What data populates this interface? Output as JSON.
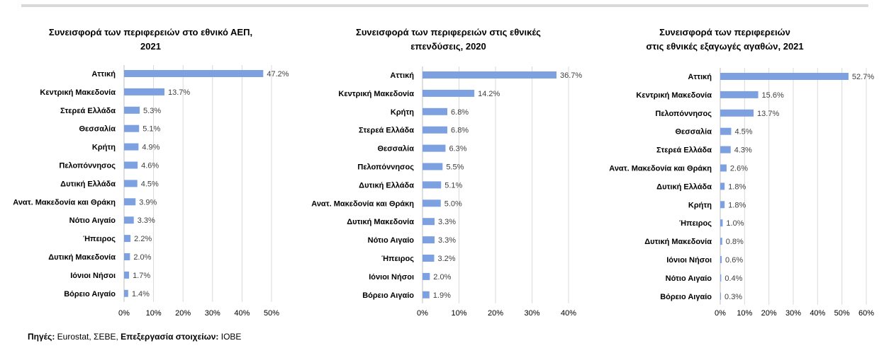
{
  "source": {
    "label1": "Πηγές:",
    "text1": " Eurostat, ΣΕΒΕ, ",
    "label2": "Επεξεργασία στοιχείων:",
    "text2": " ΙΟΒΕ"
  },
  "chart_data": [
    {
      "type": "bar",
      "orientation": "horizontal",
      "title_lines": [
        "Συνεισφορά των περιφερειών στο εθνικό ΑΕΠ,",
        "2021"
      ],
      "categories": [
        "Αττική",
        "Κεντρική Μακεδονία",
        "Στερεά Ελλάδα",
        "Θεσσαλία",
        "Κρήτη",
        "Πελοπόννησος",
        "Δυτική Ελλάδα",
        "Ανατ. Μακεδονία και Θράκη",
        "Νότιο Αιγαίο",
        "Ήπειρος",
        "Δυτική Μακεδονία",
        "Ιόνιοι Νήσοι",
        "Βόρειο Αιγαίο"
      ],
      "values": [
        47.2,
        13.7,
        5.3,
        5.1,
        4.9,
        4.6,
        4.5,
        3.9,
        3.3,
        2.2,
        2.0,
        1.7,
        1.4
      ],
      "value_labels": [
        "47.2%",
        "13.7%",
        "5.3%",
        "5.1%",
        "4.9%",
        "4.6%",
        "4.5%",
        "3.9%",
        "3.3%",
        "2.2%",
        "2.0%",
        "1.7%",
        "1.4%"
      ],
      "xlim": [
        0,
        50
      ],
      "xticks": [
        0,
        10,
        20,
        30,
        40,
        50
      ],
      "xtick_labels": [
        "0%",
        "10%",
        "20%",
        "30%",
        "40%",
        "50%"
      ],
      "grid": true,
      "bar_color": "#7da1e0",
      "grid_color": "#d9d9d9"
    },
    {
      "type": "bar",
      "orientation": "horizontal",
      "title_lines": [
        "Συνεισφορά των περιφερειών στις εθνικές",
        "επενδύσεις, 2020"
      ],
      "categories": [
        "Αττική",
        "Κεντρική Μακεδονία",
        "Κρήτη",
        "Στερεά Ελλάδα",
        "Θεσσαλία",
        "Πελοπόννησος",
        "Δυτική Ελλάδα",
        "Ανατ. Μακεδονία και Θράκη",
        "Δυτική Μακεδονία",
        "Νότιο Αιγαίο",
        "Ήπειρος",
        "Ιόνιοι Νήσοι",
        "Βόρειο Αιγαίο"
      ],
      "values": [
        36.7,
        14.2,
        6.8,
        6.8,
        6.3,
        5.5,
        5.1,
        5.0,
        3.3,
        3.3,
        3.2,
        2.0,
        1.9
      ],
      "value_labels": [
        "36.7%",
        "14.2%",
        "6.8%",
        "6.8%",
        "6.3%",
        "5.5%",
        "5.1%",
        "5.0%",
        "3.3%",
        "3.3%",
        "3.2%",
        "2.0%",
        "1.9%"
      ],
      "xlim": [
        0,
        40
      ],
      "xticks": [
        0,
        10,
        20,
        30,
        40
      ],
      "xtick_labels": [
        "0%",
        "10%",
        "20%",
        "30%",
        "40%"
      ],
      "grid": true,
      "bar_color": "#7da1e0",
      "grid_color": "#d9d9d9"
    },
    {
      "type": "bar",
      "orientation": "horizontal",
      "title_lines": [
        "Συνεισφορά των περιφερειών",
        "στις εθνικές εξαγωγές αγαθών, 2021"
      ],
      "categories": [
        "Αττική",
        "Κεντρική Μακεδονία",
        "Πελοπόννησος",
        "Θεσσαλία",
        "Στερεά Ελλάδα",
        "Ανατ. Μακεδονία και Θράκη",
        "Δυτική Ελλάδα",
        "Κρήτη",
        "Ήπειρος",
        "Δυτική Μακεδονία",
        "Ιόνιοι Νήσοι",
        "Νότιο Αιγαίο",
        "Βόρειο Αιγαίο"
      ],
      "values": [
        52.7,
        15.6,
        13.7,
        4.5,
        4.3,
        2.6,
        1.8,
        1.8,
        1.0,
        0.8,
        0.6,
        0.4,
        0.3
      ],
      "value_labels": [
        "52.7%",
        "15.6%",
        "13.7%",
        "4.5%",
        "4.3%",
        "2.6%",
        "1.8%",
        "1.8%",
        "1.0%",
        "0.8%",
        "0.6%",
        "0.4%",
        "0.3%"
      ],
      "xlim": [
        0,
        60
      ],
      "xticks": [
        0,
        10,
        20,
        30,
        40,
        50,
        60
      ],
      "xtick_labels": [
        "0%",
        "10%",
        "20%",
        "30%",
        "40%",
        "50%",
        "60%"
      ],
      "grid": true,
      "bar_color": "#7da1e0",
      "grid_color": "#d9d9d9"
    }
  ]
}
